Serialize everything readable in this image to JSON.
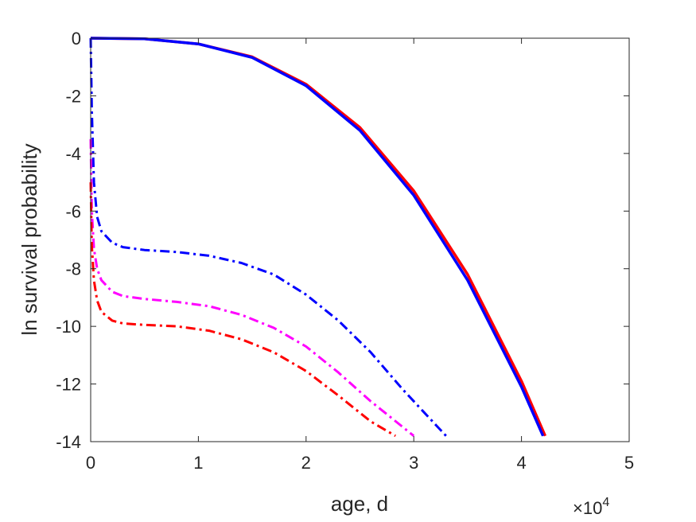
{
  "chart_data": {
    "type": "line",
    "xlabel": "age, d",
    "ylabel": "ln survival probability",
    "x_exponent_label": "×10",
    "x_exponent_power": "4",
    "xlim": [
      0,
      50000
    ],
    "ylim": [
      -14,
      0
    ],
    "x_ticks": [
      0,
      10000,
      20000,
      30000,
      40000,
      50000
    ],
    "x_tick_labels": [
      "0",
      "1",
      "2",
      "3",
      "4",
      "5"
    ],
    "y_ticks": [
      0,
      -2,
      -4,
      -6,
      -8,
      -10,
      -12,
      -14
    ],
    "y_tick_labels": [
      "0",
      "-2",
      "-4",
      "-6",
      "-8",
      "-10",
      "-12",
      "-14"
    ],
    "grid": false,
    "series": [
      {
        "color": "#ff0000",
        "style": "solid",
        "x": [
          0,
          5000,
          10000,
          15000,
          20000,
          25000,
          30000,
          35000,
          40000,
          42200
        ],
        "y": [
          0,
          -0.02,
          -0.2,
          -0.65,
          -1.6,
          -3.1,
          -5.3,
          -8.2,
          -11.9,
          -13.8
        ]
      },
      {
        "color": "#0000ff",
        "style": "solid",
        "x": [
          0,
          5000,
          10000,
          15000,
          20000,
          25000,
          30000,
          35000,
          40000,
          42000
        ],
        "y": [
          0,
          -0.02,
          -0.2,
          -0.67,
          -1.65,
          -3.2,
          -5.45,
          -8.4,
          -12.1,
          -13.8
        ]
      },
      {
        "color": "#0000ff",
        "style": "dashdot",
        "x": [
          0,
          100,
          300,
          600,
          1000,
          2000,
          3000,
          5000,
          8000,
          11000,
          14000,
          17000,
          20000,
          23000,
          26000,
          29000,
          31000,
          33000
        ],
        "y": [
          0,
          -2.5,
          -5.0,
          -6.2,
          -6.7,
          -7.1,
          -7.25,
          -7.35,
          -7.42,
          -7.55,
          -7.8,
          -8.2,
          -8.9,
          -9.8,
          -10.9,
          -12.2,
          -13.0,
          -13.8
        ]
      },
      {
        "color": "#ff00ff",
        "style": "dashdot",
        "x": [
          0,
          100,
          300,
          600,
          1000,
          2000,
          3000,
          5000,
          8000,
          11000,
          14000,
          17000,
          20000,
          23000,
          26000,
          28000,
          30000
        ],
        "y": [
          -3.5,
          -6.0,
          -7.3,
          -8.0,
          -8.4,
          -8.8,
          -8.95,
          -9.05,
          -9.15,
          -9.3,
          -9.6,
          -10.05,
          -10.7,
          -11.6,
          -12.6,
          -13.2,
          -13.8
        ]
      },
      {
        "color": "#ff0000",
        "style": "dashdot",
        "x": [
          0,
          100,
          300,
          600,
          1000,
          2000,
          3000,
          5000,
          8000,
          11000,
          14000,
          17000,
          20000,
          23000,
          26000,
          28300
        ],
        "y": [
          -5.0,
          -7.2,
          -8.4,
          -9.1,
          -9.5,
          -9.8,
          -9.9,
          -9.95,
          -10.0,
          -10.15,
          -10.45,
          -10.9,
          -11.55,
          -12.4,
          -13.3,
          -13.8
        ]
      }
    ]
  }
}
